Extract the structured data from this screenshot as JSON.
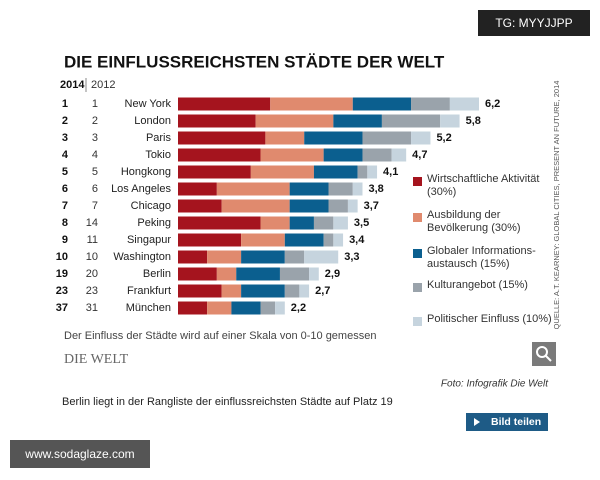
{
  "chart_data": {
    "type": "stacked-bar",
    "title": "DIE EINFLUSSREICHSTEN STÄDTE DER WELT",
    "year_headers": [
      "2014",
      "2012"
    ],
    "categories": [
      "New York",
      "London",
      "Paris",
      "Tokio",
      "Hongkong",
      "Los Angeles",
      "Chicago",
      "Peking",
      "Singapur",
      "Washington",
      "Berlin",
      "Frankfurt",
      "München"
    ],
    "rank_2014": [
      1,
      2,
      3,
      4,
      5,
      6,
      7,
      8,
      9,
      10,
      19,
      23,
      37
    ],
    "rank_2012": [
      1,
      2,
      3,
      4,
      5,
      6,
      7,
      14,
      11,
      10,
      20,
      23,
      31
    ],
    "series": [
      {
        "name": "Wirtschaftliche Aktivität (30%)",
        "color": "#a5141e",
        "values": [
          1.9,
          1.6,
          1.8,
          1.7,
          1.5,
          0.8,
          0.9,
          1.7,
          1.3,
          0.6,
          0.8,
          0.9,
          0.6
        ]
      },
      {
        "name": "Ausbildung der Bevölkerung (30%)",
        "color": "#e08a6e",
        "values": [
          1.7,
          1.6,
          0.8,
          1.3,
          1.3,
          1.5,
          1.4,
          0.6,
          0.9,
          0.7,
          0.4,
          0.4,
          0.5
        ]
      },
      {
        "name": "Globaler Informations-austausch (15%)",
        "color": "#0b5f8f",
        "values": [
          1.2,
          1.0,
          1.2,
          0.8,
          0.9,
          0.8,
          0.8,
          0.5,
          0.8,
          0.9,
          0.9,
          0.9,
          0.6
        ]
      },
      {
        "name": "Kulturangebot (15%)",
        "color": "#9aa3ab",
        "values": [
          0.8,
          1.2,
          1.0,
          0.6,
          0.2,
          0.5,
          0.4,
          0.4,
          0.2,
          0.4,
          0.6,
          0.3,
          0.3
        ]
      },
      {
        "name": "Politischer Einfluss (10%)",
        "color": "#c6d4de",
        "values": [
          0.6,
          0.4,
          0.4,
          0.3,
          0.2,
          0.2,
          0.2,
          0.3,
          0.2,
          0.7,
          0.2,
          0.2,
          0.2
        ]
      }
    ],
    "totals": [
      6.2,
      5.8,
      5.2,
      4.7,
      4.1,
      3.8,
      3.7,
      3.5,
      3.4,
      3.3,
      2.9,
      2.7,
      2.2
    ],
    "total_labels": [
      "6,2",
      "5,8",
      "5,2",
      "4,7",
      "4,1",
      "3,8",
      "3,7",
      "3,5",
      "3,4",
      "3,3",
      "2,9",
      "2,7",
      "2,2"
    ],
    "xlim": [
      0,
      6.2
    ],
    "note": "Der Einfluss der Städte wird auf einer Skala von 0-10 gemessen",
    "source": "QUELLE: A.T. KEARNEY: GLOBAL CITIES, PRESENT AN FUTURE, 2014",
    "logo": "DIE WELT",
    "credit": "Foto: Infografik Die Welt"
  },
  "caption": "Berlin liegt in der Rangliste der einflussreichsten Städte auf Platz 19",
  "share_button": "Bild teilen",
  "watermark_top": "TG: MYYJJPP",
  "watermark_bottom": "www.sodaglaze.com"
}
